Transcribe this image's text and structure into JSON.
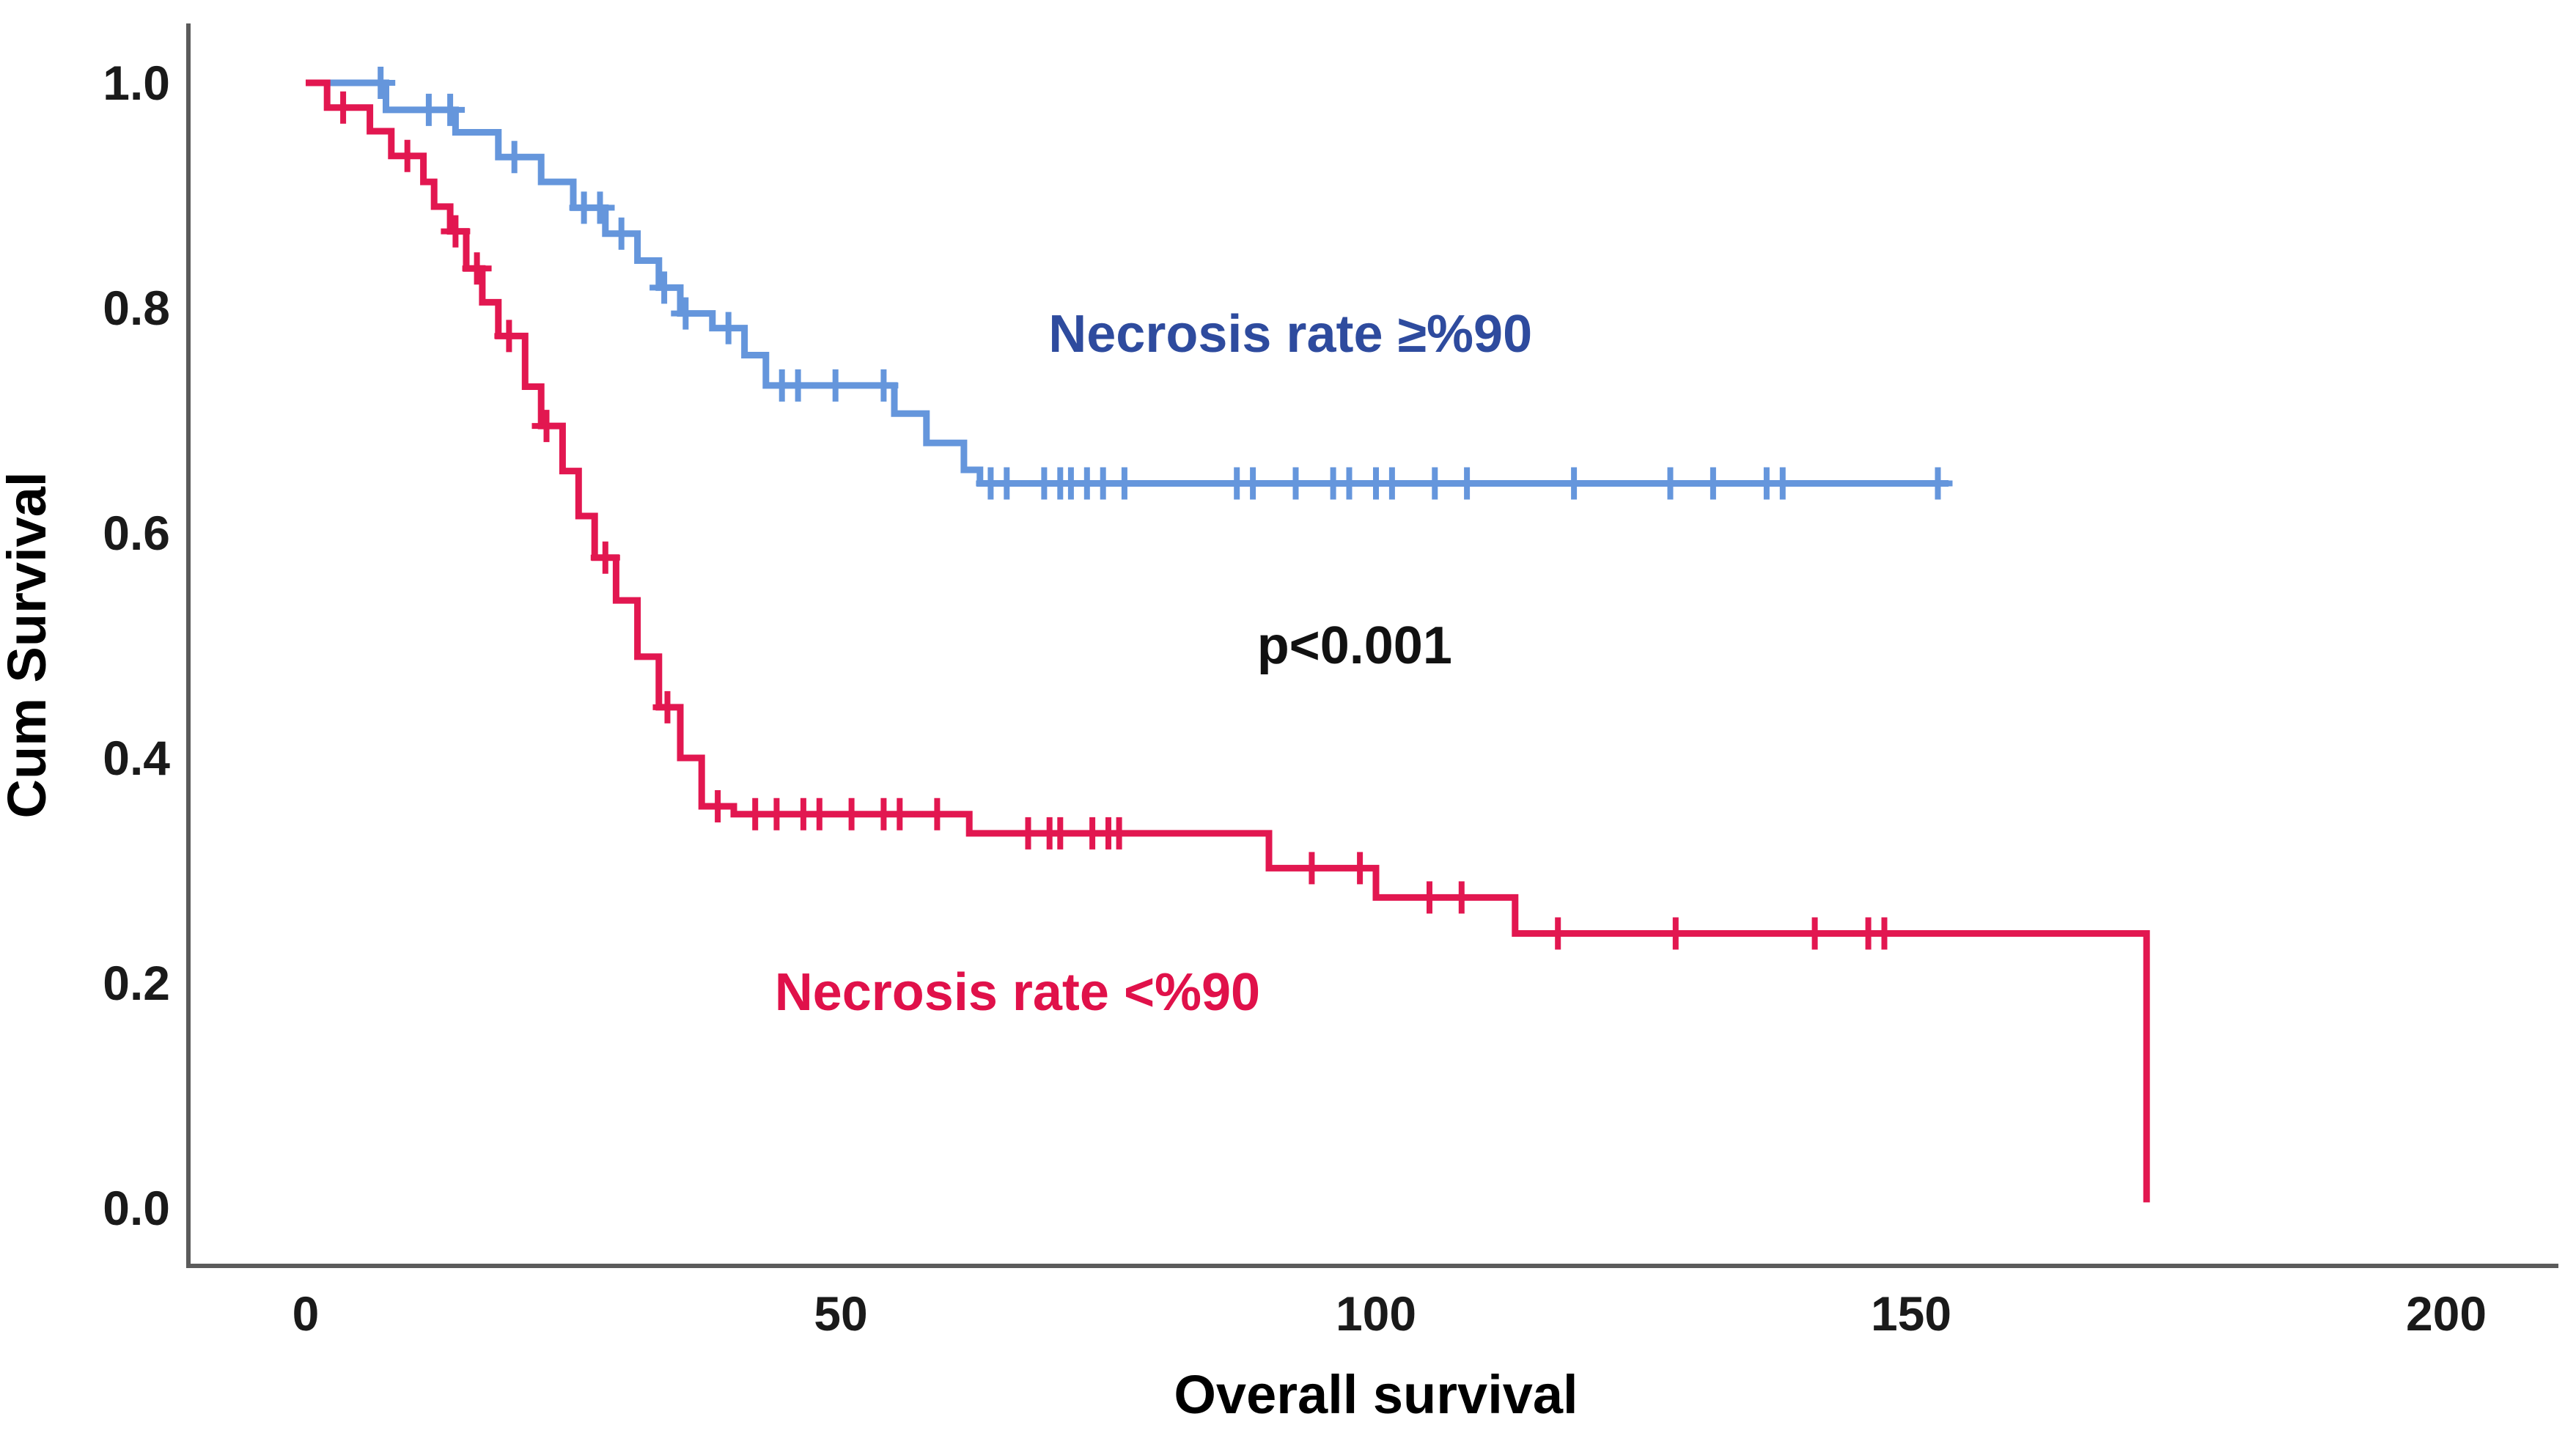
{
  "chart_data": {
    "type": "line",
    "subtype": "kaplan-meier-step",
    "title": "",
    "xlabel": "Overall survival",
    "ylabel": "Cum Survival",
    "xlim": [
      -11,
      211
    ],
    "ylim": [
      -0.05,
      1.05
    ],
    "xticks": [
      "0",
      "50",
      "100",
      "150",
      "200"
    ],
    "yticks": [
      "0.0",
      "0.2",
      "0.4",
      "0.6",
      "0.8",
      "1.0"
    ],
    "grid": false,
    "legend_position": "inline-annotations",
    "annotations": [
      {
        "text": "Necrosis rate ≥%90",
        "x": 92,
        "y": 0.761,
        "color": "#2E4B9E"
      },
      {
        "text": "p<0.001",
        "x": 98,
        "y": 0.484,
        "color": "#111111"
      },
      {
        "text": "Necrosis rate <%90",
        "x": 66.5,
        "y": 0.176,
        "color": "#E0114A"
      }
    ],
    "series": [
      {
        "id": "high",
        "name": "Necrosis rate ≥%90",
        "color": "#6596DC",
        "label_color": "#2E4B9E",
        "steps": [
          [
            0,
            1.0
          ],
          [
            7.5,
            0.976
          ],
          [
            14,
            0.956
          ],
          [
            18,
            0.934
          ],
          [
            22,
            0.912
          ],
          [
            25,
            0.889
          ],
          [
            28,
            0.866
          ],
          [
            31,
            0.842
          ],
          [
            33,
            0.818
          ],
          [
            35,
            0.795
          ],
          [
            38,
            0.782
          ],
          [
            41,
            0.758
          ],
          [
            43,
            0.731
          ],
          [
            55,
            0.706
          ],
          [
            58,
            0.68
          ],
          [
            61.5,
            0.656
          ],
          [
            63,
            0.644
          ],
          [
            153.5,
            0.644
          ]
        ],
        "censors": [
          [
            7,
            1.0
          ],
          [
            11.5,
            0.976
          ],
          [
            13.5,
            0.976
          ],
          [
            19.5,
            0.934
          ],
          [
            26,
            0.889
          ],
          [
            27.5,
            0.889
          ],
          [
            29.5,
            0.866
          ],
          [
            33.5,
            0.818
          ],
          [
            35.5,
            0.795
          ],
          [
            39.5,
            0.782
          ],
          [
            44.5,
            0.731
          ],
          [
            46,
            0.731
          ],
          [
            49.5,
            0.731
          ],
          [
            54,
            0.731
          ],
          [
            64,
            0.644
          ],
          [
            65.5,
            0.644
          ],
          [
            69,
            0.644
          ],
          [
            70.5,
            0.644
          ],
          [
            71.5,
            0.644
          ],
          [
            73,
            0.644
          ],
          [
            74.5,
            0.644
          ],
          [
            76.5,
            0.644
          ],
          [
            87,
            0.644
          ],
          [
            88.5,
            0.644
          ],
          [
            92.5,
            0.644
          ],
          [
            96,
            0.644
          ],
          [
            97.5,
            0.644
          ],
          [
            100,
            0.644
          ],
          [
            101.5,
            0.644
          ],
          [
            105.5,
            0.644
          ],
          [
            108.5,
            0.644
          ],
          [
            118.5,
            0.644
          ],
          [
            127.5,
            0.644
          ],
          [
            131.5,
            0.644
          ],
          [
            136.5,
            0.644
          ],
          [
            138,
            0.644
          ],
          [
            152.5,
            0.644
          ]
        ]
      },
      {
        "id": "low",
        "name": "Necrosis rate <%90",
        "color": "#E21750",
        "label_color": "#E0114A",
        "steps": [
          [
            0,
            1.0
          ],
          [
            2,
            0.978
          ],
          [
            6,
            0.957
          ],
          [
            8,
            0.935
          ],
          [
            11,
            0.912
          ],
          [
            12,
            0.89
          ],
          [
            13.5,
            0.868
          ],
          [
            15,
            0.835
          ],
          [
            16.5,
            0.805
          ],
          [
            18,
            0.775
          ],
          [
            20.5,
            0.73
          ],
          [
            22,
            0.695
          ],
          [
            24,
            0.655
          ],
          [
            25.5,
            0.615
          ],
          [
            27,
            0.578
          ],
          [
            29,
            0.54
          ],
          [
            31,
            0.49
          ],
          [
            33,
            0.445
          ],
          [
            35,
            0.4
          ],
          [
            37,
            0.357
          ],
          [
            40,
            0.35
          ],
          [
            62,
            0.333
          ],
          [
            90,
            0.302
          ],
          [
            100,
            0.276
          ],
          [
            113,
            0.244
          ],
          [
            172,
            0.005
          ]
        ],
        "censors": [
          [
            3.5,
            0.978
          ],
          [
            9.5,
            0.935
          ],
          [
            14,
            0.868
          ],
          [
            16,
            0.835
          ],
          [
            19,
            0.775
          ],
          [
            22.5,
            0.695
          ],
          [
            28,
            0.578
          ],
          [
            33.8,
            0.445
          ],
          [
            38.5,
            0.357
          ],
          [
            42,
            0.35
          ],
          [
            44,
            0.35
          ],
          [
            46.5,
            0.35
          ],
          [
            48,
            0.35
          ],
          [
            51,
            0.35
          ],
          [
            54,
            0.35
          ],
          [
            55.5,
            0.35
          ],
          [
            59,
            0.35
          ],
          [
            67.5,
            0.333
          ],
          [
            69.5,
            0.333
          ],
          [
            70.5,
            0.333
          ],
          [
            73.5,
            0.333
          ],
          [
            75,
            0.333
          ],
          [
            76,
            0.333
          ],
          [
            94,
            0.302
          ],
          [
            98.5,
            0.302
          ],
          [
            105,
            0.276
          ],
          [
            108,
            0.276
          ],
          [
            117,
            0.244
          ],
          [
            128,
            0.244
          ],
          [
            141,
            0.244
          ],
          [
            146,
            0.244
          ],
          [
            147.5,
            0.244
          ]
        ]
      }
    ]
  }
}
